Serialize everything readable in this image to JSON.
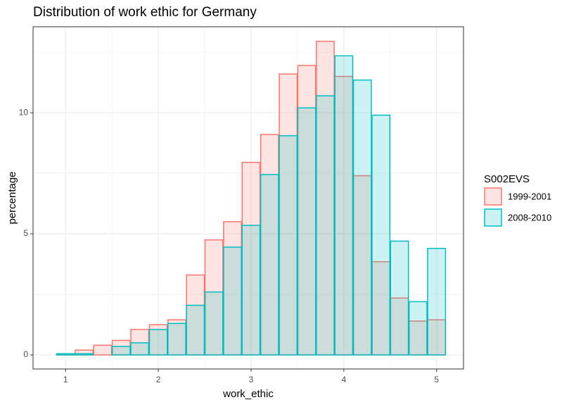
{
  "chart_data": {
    "type": "histogram",
    "title": "Distribution of work ethic for Germany",
    "x_label": "work_ethic",
    "y_label": "percentage",
    "bins": [
      0.9,
      1.1,
      1.3,
      1.5,
      1.7,
      1.9,
      2.1,
      2.3,
      2.5,
      2.7,
      2.9,
      3.1,
      3.3,
      3.5,
      3.7,
      3.9,
      4.1,
      4.3,
      4.5,
      4.7,
      4.9,
      5.1
    ],
    "series": [
      {
        "name": "1999-2001",
        "color": "#F8766D",
        "values": [
          0.05,
          0.2,
          0.4,
          0.6,
          1.05,
          1.25,
          1.45,
          3.3,
          4.75,
          5.5,
          7.95,
          9.1,
          11.6,
          11.95,
          12.95,
          11.5,
          7.4,
          3.85,
          2.35,
          1.4,
          1.45
        ]
      },
      {
        "name": "2008-2010",
        "color": "#00BFC4",
        "values": [
          0.05,
          0.05,
          0,
          0.35,
          0.5,
          1.05,
          1.3,
          2.05,
          2.6,
          4.45,
          5.35,
          7.45,
          9.05,
          10.2,
          10.7,
          12.35,
          11.35,
          9.9,
          4.7,
          2.2,
          4.4
        ]
      }
    ],
    "legend_title": "S002EVS",
    "legend": "right",
    "xlim": [
      0.65,
      5.29
    ],
    "ylim": [
      -0.58,
      13.55
    ],
    "xticks": [
      1,
      2,
      3,
      4,
      5
    ],
    "yticks": [
      0,
      5,
      10
    ],
    "x_minor_grid": [
      1.5,
      2.5,
      3.5,
      4.5
    ],
    "y_minor_grid": [
      2.5,
      7.5,
      12.5
    ],
    "grid": true
  }
}
